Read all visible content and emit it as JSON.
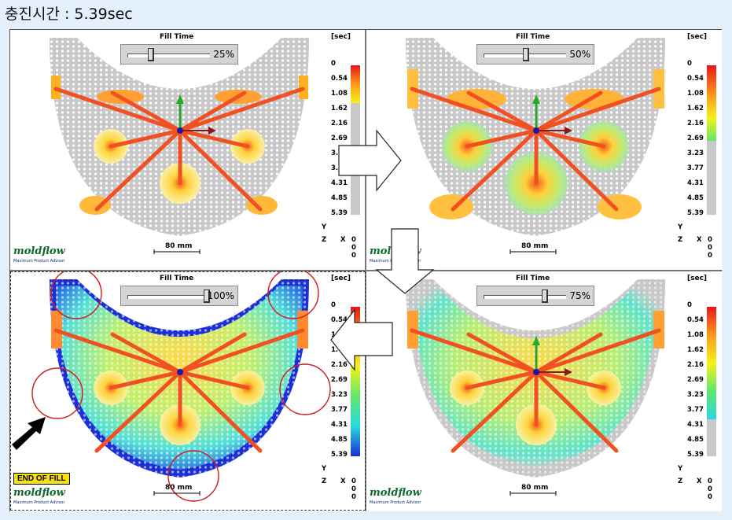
{
  "page_title": "충진시간 : 5.39sec",
  "plot_title": "Fill Time",
  "unit": "[sec]",
  "scale_ticks": [
    "0",
    "0.54",
    "1.08",
    "1.62",
    "2.16",
    "2.69",
    "3.23",
    "3.77",
    "4.31",
    "4.85",
    "5.39"
  ],
  "scale_bar": "80 mm",
  "logo": "moldflow",
  "logo_sub": "Maximum Product Advisor",
  "axis": {
    "y": "Y",
    "z": "Z",
    "x": "X",
    "vals": [
      "0",
      "0",
      "0"
    ]
  },
  "end_label": "END OF FILL",
  "panels": [
    {
      "id": "p25",
      "fill_fraction": 0.25,
      "percent_label": "25%"
    },
    {
      "id": "p50",
      "fill_fraction": 0.5,
      "percent_label": "50%"
    },
    {
      "id": "p100",
      "fill_fraction": 1.0,
      "percent_label": "100%"
    },
    {
      "id": "p75",
      "fill_fraction": 0.75,
      "percent_label": "75%"
    }
  ],
  "colors": {
    "fill_end": "#1a2fd6",
    "unfilled": "#c8c8c8",
    "runner": "#f05022",
    "gate": "#1a1aa0"
  }
}
